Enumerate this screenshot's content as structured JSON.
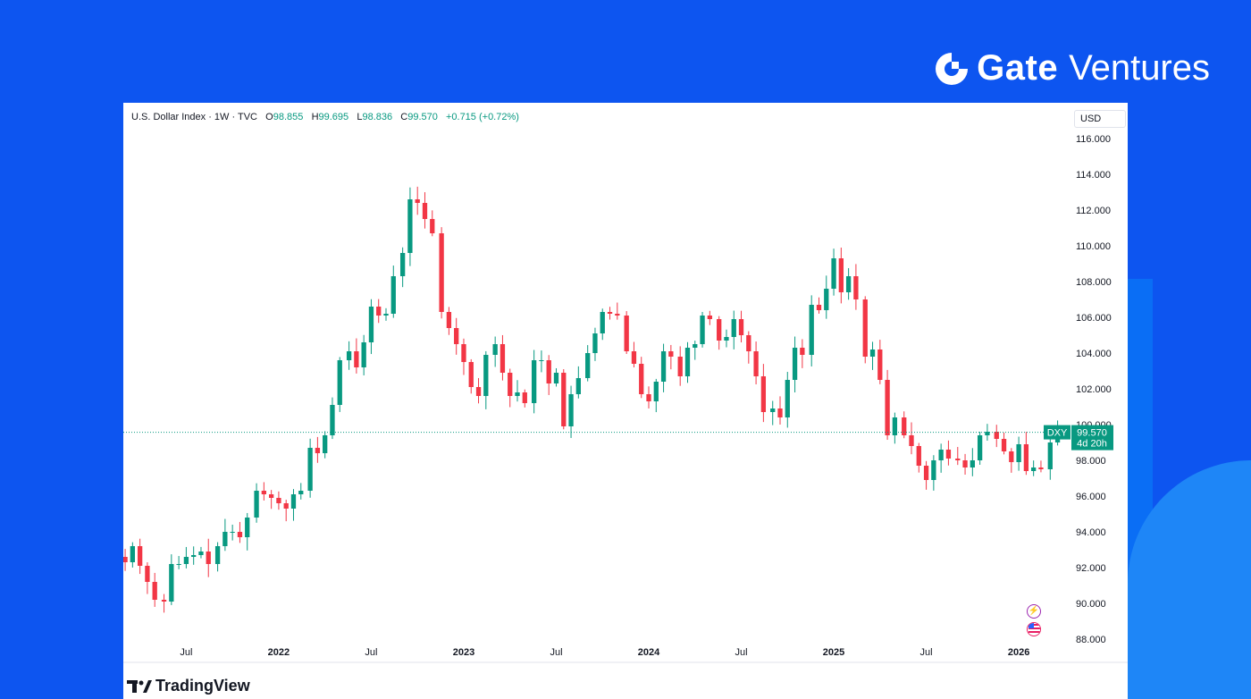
{
  "brand": {
    "name": "Gate",
    "suffix": "Ventures"
  },
  "legend": {
    "symbol": "U.S. Dollar Index · 1W · TVC",
    "open_label": "O",
    "open": "98.855",
    "high_label": "H",
    "high": "99.695",
    "low_label": "L",
    "low": "98.836",
    "close_label": "C",
    "close": "99.570",
    "change": "+0.715 (+0.72%)"
  },
  "currency_button": "USD",
  "price_badge": {
    "ticker": "DXY",
    "price": "99.570",
    "countdown": "4d 20h"
  },
  "footer_brand": "TradingView",
  "colors": {
    "up": "#089981",
    "down": "#f23645",
    "background": "#0d55f0",
    "panel": "#ffffff"
  },
  "chart_data": {
    "type": "candlestick",
    "title": "U.S. Dollar Index",
    "interval": "1W",
    "source": "TVC",
    "currency": "USD",
    "ylim": [
      87,
      117
    ],
    "y_ticks": [
      "116.000",
      "114.000",
      "112.000",
      "110.000",
      "108.000",
      "106.000",
      "104.000",
      "102.000",
      "100.000",
      "98.000",
      "96.000",
      "94.000",
      "92.000",
      "90.000",
      "88.000"
    ],
    "x_ticks": [
      "Jul",
      "2022",
      "Jul",
      "2023",
      "Jul",
      "2024",
      "Jul",
      "2025",
      "Jul",
      "2026"
    ],
    "x_tick_times": [
      2021.5,
      2022.0,
      2022.5,
      2023.0,
      2023.5,
      2024.0,
      2024.5,
      2025.0,
      2025.5,
      2026.0
    ],
    "xlim": [
      2021.16,
      2026.27
    ],
    "last_price": 99.57,
    "closes": [
      [
        2021.17,
        92.3
      ],
      [
        2021.21,
        93.2
      ],
      [
        2021.25,
        92.1
      ],
      [
        2021.29,
        91.2
      ],
      [
        2021.33,
        90.2
      ],
      [
        2021.38,
        90.1
      ],
      [
        2021.42,
        92.2
      ],
      [
        2021.46,
        92.2
      ],
      [
        2021.5,
        92.6
      ],
      [
        2021.54,
        92.7
      ],
      [
        2021.58,
        92.9
      ],
      [
        2021.62,
        92.2
      ],
      [
        2021.67,
        93.2
      ],
      [
        2021.71,
        94.0
      ],
      [
        2021.75,
        94.0
      ],
      [
        2021.79,
        93.7
      ],
      [
        2021.83,
        94.8
      ],
      [
        2021.88,
        96.3
      ],
      [
        2021.92,
        96.1
      ],
      [
        2021.96,
        95.9
      ],
      [
        2022.0,
        95.6
      ],
      [
        2022.04,
        95.3
      ],
      [
        2022.08,
        96.1
      ],
      [
        2022.12,
        96.3
      ],
      [
        2022.17,
        98.7
      ],
      [
        2022.21,
        98.4
      ],
      [
        2022.25,
        99.4
      ],
      [
        2022.29,
        101.1
      ],
      [
        2022.33,
        103.6
      ],
      [
        2022.38,
        104.1
      ],
      [
        2022.42,
        103.2
      ],
      [
        2022.46,
        104.6
      ],
      [
        2022.5,
        106.6
      ],
      [
        2022.54,
        106.1
      ],
      [
        2022.58,
        106.2
      ],
      [
        2022.62,
        108.3
      ],
      [
        2022.67,
        109.6
      ],
      [
        2022.71,
        112.6
      ],
      [
        2022.75,
        112.4
      ],
      [
        2022.79,
        111.5
      ],
      [
        2022.83,
        110.7
      ],
      [
        2022.88,
        106.3
      ],
      [
        2022.92,
        105.4
      ],
      [
        2022.96,
        104.5
      ],
      [
        2023.0,
        103.5
      ],
      [
        2023.04,
        102.1
      ],
      [
        2023.08,
        101.6
      ],
      [
        2023.12,
        103.9
      ],
      [
        2023.17,
        104.5
      ],
      [
        2023.21,
        102.9
      ],
      [
        2023.25,
        101.6
      ],
      [
        2023.29,
        101.8
      ],
      [
        2023.33,
        101.2
      ],
      [
        2023.38,
        103.6
      ],
      [
        2023.42,
        103.6
      ],
      [
        2023.46,
        102.3
      ],
      [
        2023.5,
        102.9
      ],
      [
        2023.54,
        99.9
      ],
      [
        2023.58,
        101.7
      ],
      [
        2023.62,
        102.6
      ],
      [
        2023.67,
        104.0
      ],
      [
        2023.71,
        105.1
      ],
      [
        2023.75,
        106.3
      ],
      [
        2023.79,
        106.2
      ],
      [
        2023.83,
        106.1
      ],
      [
        2023.88,
        104.1
      ],
      [
        2023.92,
        103.4
      ],
      [
        2023.96,
        101.7
      ],
      [
        2024.0,
        101.3
      ],
      [
        2024.04,
        102.4
      ],
      [
        2024.08,
        104.1
      ],
      [
        2024.12,
        103.8
      ],
      [
        2024.17,
        102.7
      ],
      [
        2024.21,
        104.3
      ],
      [
        2024.25,
        104.5
      ],
      [
        2024.29,
        106.1
      ],
      [
        2024.33,
        105.9
      ],
      [
        2024.38,
        104.7
      ],
      [
        2024.42,
        104.9
      ],
      [
        2024.46,
        105.9
      ],
      [
        2024.5,
        105.0
      ],
      [
        2024.54,
        104.1
      ],
      [
        2024.58,
        102.7
      ],
      [
        2024.62,
        100.7
      ],
      [
        2024.67,
        100.9
      ],
      [
        2024.71,
        100.4
      ],
      [
        2024.75,
        102.5
      ],
      [
        2024.79,
        104.3
      ],
      [
        2024.83,
        103.9
      ],
      [
        2024.88,
        106.7
      ],
      [
        2024.92,
        106.4
      ],
      [
        2024.96,
        107.6
      ],
      [
        2025.0,
        109.3
      ],
      [
        2025.04,
        107.4
      ],
      [
        2025.08,
        108.3
      ],
      [
        2025.12,
        107.0
      ],
      [
        2025.17,
        103.8
      ],
      [
        2025.21,
        104.2
      ],
      [
        2025.25,
        102.5
      ],
      [
        2025.29,
        99.4
      ],
      [
        2025.33,
        100.4
      ],
      [
        2025.38,
        99.4
      ],
      [
        2025.42,
        98.8
      ],
      [
        2025.46,
        97.7
      ],
      [
        2025.5,
        96.9
      ],
      [
        2025.54,
        98.0
      ],
      [
        2025.58,
        98.6
      ],
      [
        2025.62,
        98.1
      ],
      [
        2025.67,
        98.0
      ],
      [
        2025.71,
        97.6
      ],
      [
        2025.75,
        98.0
      ],
      [
        2025.79,
        99.4
      ],
      [
        2025.83,
        99.6
      ],
      [
        2025.88,
        99.2
      ],
      [
        2025.92,
        98.5
      ],
      [
        2025.96,
        97.9
      ],
      [
        2026.0,
        98.9
      ],
      [
        2026.04,
        97.4
      ],
      [
        2026.08,
        97.6
      ],
      [
        2026.12,
        97.5
      ],
      [
        2026.17,
        99.0
      ],
      [
        2026.21,
        99.57
      ]
    ]
  }
}
